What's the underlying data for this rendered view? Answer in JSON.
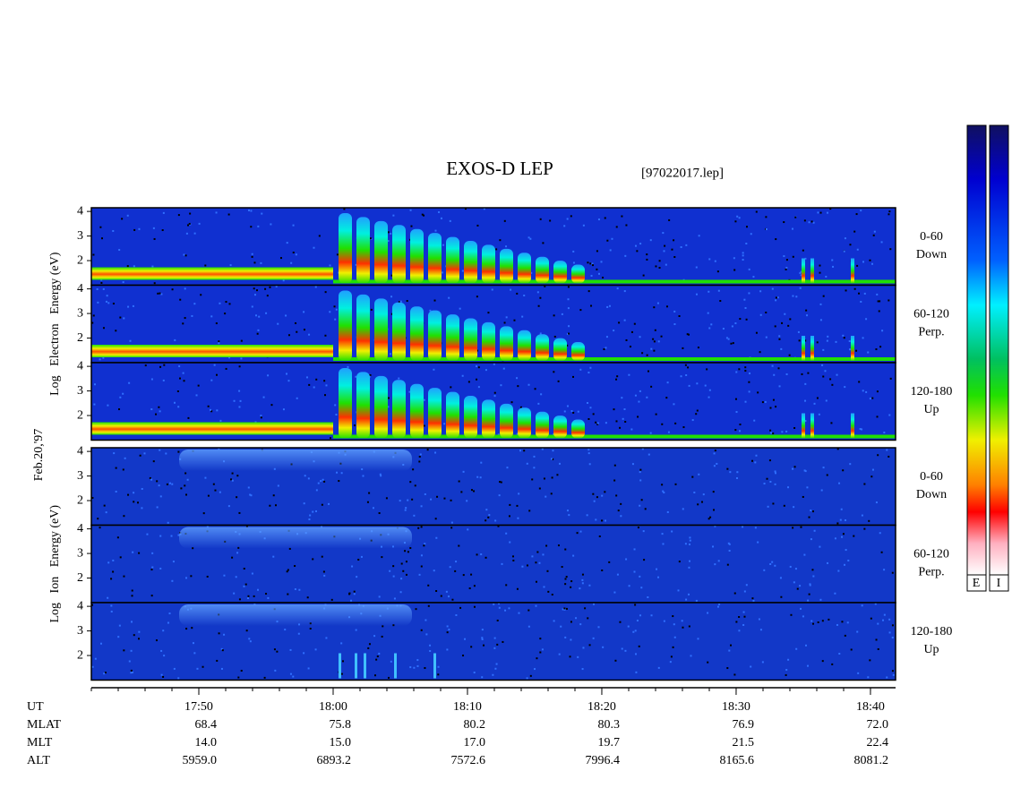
{
  "chart_data": {
    "type": "spectrogram",
    "title": "EXOS-D LEP",
    "subtitle": "[97022017.lep]",
    "date_label": "Feb.20,'97",
    "xlim": [
      42,
      101.87
    ],
    "xticks": [
      {
        "value": 50,
        "label": "17:50"
      },
      {
        "value": 60,
        "label": "18:00"
      },
      {
        "value": 70,
        "label": "18:10"
      },
      {
        "value": 80,
        "label": "18:20"
      },
      {
        "value": 90,
        "label": "18:30"
      },
      {
        "value": 100,
        "label": "18:40"
      }
    ],
    "ylim": [
      1,
      4.15
    ],
    "yticks": [
      2,
      3,
      4
    ],
    "groups": [
      {
        "ylabel": "Log   Electron   Energy (eV)",
        "panels": [
          {
            "label": "0-60",
            "sublabel": "Down"
          },
          {
            "label": "60-120",
            "sublabel": "Perp."
          },
          {
            "label": "120-180",
            "sublabel": "Up"
          }
        ]
      },
      {
        "ylabel": "Log   Ion   Energy (eV)",
        "panels": [
          {
            "label": "0-60",
            "sublabel": "Down"
          },
          {
            "label": "60-120",
            "sublabel": "Perp."
          },
          {
            "label": "120-180",
            "sublabel": "Up"
          }
        ]
      }
    ],
    "colorbar_labels": [
      "E",
      "I"
    ],
    "ephemeris": [
      {
        "label": "UT"
      },
      {
        "label": "MLAT",
        "values": [
          "68.4",
          "75.8",
          "80.2",
          "80.3",
          "76.9",
          "72.0"
        ]
      },
      {
        "label": "MLT",
        "values": [
          "14.0",
          "15.0",
          "17.0",
          "19.7",
          "21.5",
          "22.4"
        ]
      },
      {
        "label": "ALT",
        "values": [
          "5959.0",
          "6893.2",
          "7572.6",
          "7996.4",
          "8165.6",
          "8081.2"
        ]
      }
    ]
  }
}
